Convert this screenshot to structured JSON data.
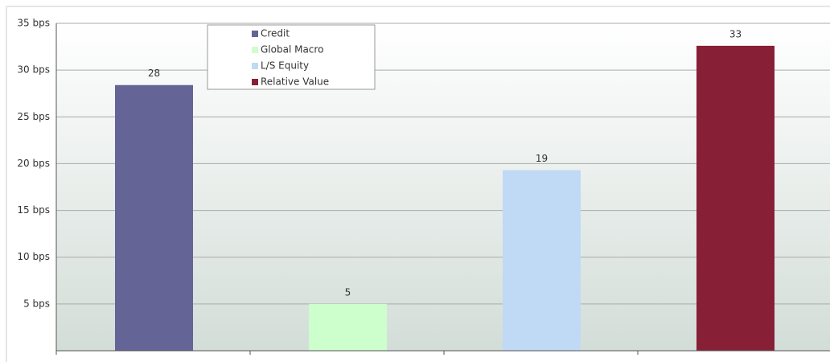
{
  "chart_data": {
    "type": "bar",
    "series": [
      {
        "name": "Credit",
        "color": "#646496",
        "values": [
          28.4
        ],
        "value_labels": [
          "28"
        ]
      },
      {
        "name": "Global Macro",
        "color": "#ccffcc",
        "values": [
          5
        ],
        "value_labels": [
          "5"
        ]
      },
      {
        "name": "L/S Equity",
        "color": "#c0daf5",
        "values": [
          19.3
        ],
        "value_labels": [
          "19"
        ]
      },
      {
        "name": "Relative Value",
        "color": "#872036",
        "values": [
          32.6
        ],
        "value_labels": [
          "33"
        ]
      }
    ],
    "ylim": [
      0,
      35
    ],
    "yticks": [
      {
        "value": 5,
        "label": "5 bps"
      },
      {
        "value": 10,
        "label": "10 bps"
      },
      {
        "value": 15,
        "label": "15 bps"
      },
      {
        "value": 20,
        "label": "20 bps"
      },
      {
        "value": 25,
        "label": "25 bps"
      },
      {
        "value": 30,
        "label": "30 bps"
      },
      {
        "value": 35,
        "label": "35 bps"
      }
    ],
    "grid": true,
    "legend": "top"
  }
}
